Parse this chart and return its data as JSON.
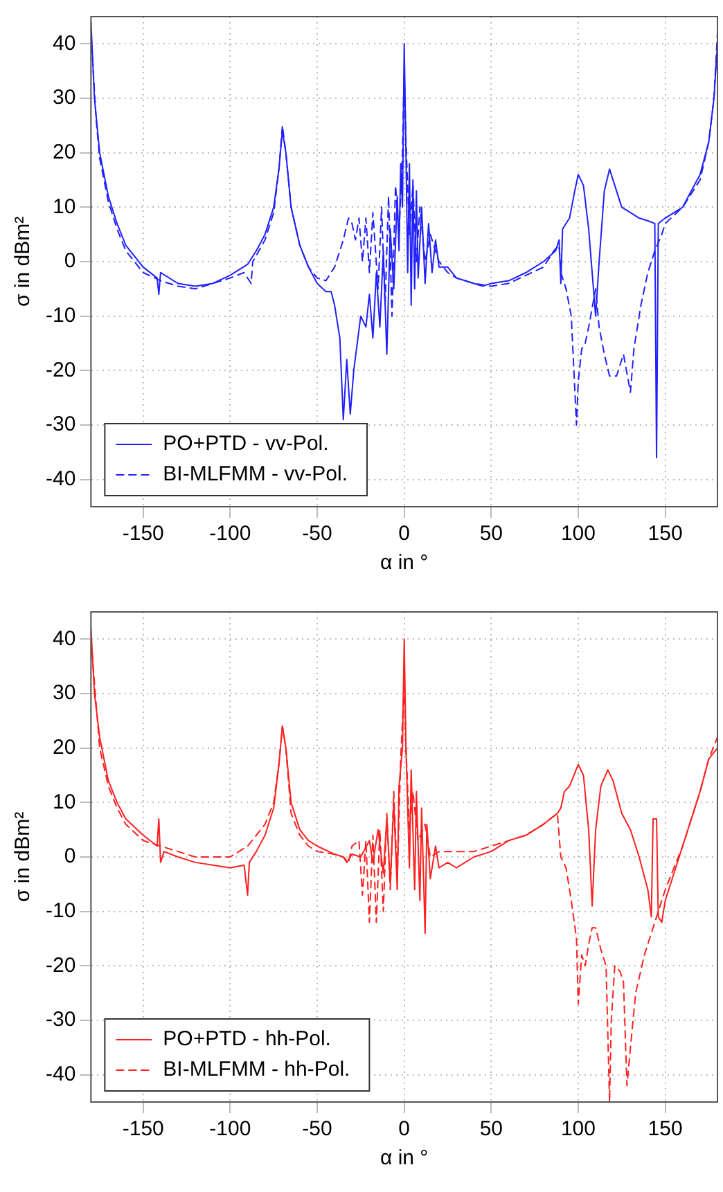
{
  "chart_data": [
    {
      "type": "line",
      "xlabel": "α in °",
      "ylabel": "σ in dBm²",
      "xlim": [
        -180,
        180
      ],
      "xticks": [
        -150,
        -100,
        -50,
        0,
        50,
        100,
        150
      ],
      "ylim": [
        -45,
        45
      ],
      "yticks": [
        -40,
        -30,
        -20,
        -10,
        0,
        10,
        20,
        30,
        40
      ],
      "grid": true,
      "legend": "bottom left",
      "marker": "none",
      "series": [
        {
          "name": "PO+PTD - vv-Pol.",
          "color": "#2020ff",
          "line_style": "solid",
          "x": [
            -180,
            -178,
            -175,
            -170,
            -165,
            -160,
            -150,
            -142,
            -141,
            -140,
            -130,
            -120,
            -110,
            -100,
            -90,
            -85,
            -80,
            -75,
            -72,
            -70,
            -68,
            -65,
            -60,
            -55,
            -50,
            -45,
            -42,
            -40,
            -37,
            -35,
            -33,
            -31,
            -29,
            -27,
            -25,
            -22,
            -20,
            -18,
            -16,
            -14,
            -12,
            -10,
            -8,
            -6,
            -4,
            -3,
            -2,
            -1,
            0,
            1,
            2,
            3,
            4,
            5,
            6,
            7,
            8,
            10,
            12,
            14,
            16,
            18,
            20,
            25,
            30,
            35,
            40,
            45,
            50,
            60,
            70,
            80,
            87,
            89,
            90,
            91,
            95,
            98,
            100,
            103,
            106,
            108,
            110,
            112,
            115,
            118,
            121,
            125,
            130,
            135,
            140,
            144,
            145,
            146,
            150,
            160,
            170,
            175,
            178,
            180
          ],
          "values": [
            44,
            30,
            20,
            12,
            7,
            3,
            -1,
            -3,
            -6,
            -2,
            -4,
            -4.5,
            -4,
            -2.5,
            -0.5,
            2,
            5,
            10,
            17,
            24,
            20,
            10,
            3,
            -1,
            -4,
            -5.5,
            -5.5,
            -8,
            -14,
            -29,
            -18,
            -28,
            -20,
            -15,
            -10,
            -12,
            -6,
            -14,
            -2,
            -12,
            2,
            -17,
            6,
            -5,
            12,
            2,
            18,
            10,
            40,
            20,
            -2,
            18,
            -8,
            15,
            -5,
            13,
            -3,
            10,
            -4,
            7,
            -2,
            4,
            -1,
            -1,
            -3,
            -3.5,
            -4,
            -4.5,
            -4,
            -3.5,
            -2,
            0,
            2,
            4,
            -4,
            6,
            8,
            13,
            16,
            14,
            6,
            -2,
            -10,
            0,
            13,
            17,
            14,
            10,
            9,
            8,
            7.5,
            7,
            -36,
            7,
            8,
            10,
            16,
            22,
            30,
            40
          ]
        },
        {
          "name": "BI-MLFMM - vv-Pol.",
          "color": "#2020ff",
          "line_style": "dashed",
          "x": [
            -180,
            -177,
            -175,
            -170,
            -165,
            -160,
            -150,
            -140,
            -130,
            -120,
            -110,
            -100,
            -92,
            -88,
            -87,
            -80,
            -75,
            -72,
            -70,
            -68,
            -65,
            -60,
            -55,
            -50,
            -45,
            -40,
            -35,
            -32,
            -30,
            -28,
            -26,
            -24,
            -22,
            -20,
            -18,
            -15,
            -13,
            -11,
            -9,
            -7,
            -5,
            -3,
            -1,
            0,
            1,
            3,
            5,
            7,
            9,
            12,
            15,
            20,
            25,
            30,
            40,
            50,
            60,
            70,
            80,
            86,
            89,
            90,
            93,
            96,
            99,
            100,
            102,
            104,
            106,
            110,
            112,
            115,
            118,
            122,
            126,
            130,
            132,
            136,
            140,
            144,
            148,
            150,
            160,
            170,
            175,
            178,
            180
          ],
          "values": [
            42,
            26,
            19,
            11,
            6,
            2,
            -2,
            -3.5,
            -4.5,
            -5,
            -4,
            -3,
            -2,
            -4,
            0,
            4,
            9,
            17,
            25,
            20,
            10,
            3,
            -1,
            -3,
            -3.5,
            -1,
            4,
            8,
            7,
            4,
            8,
            0,
            8,
            -2,
            9,
            -5,
            10,
            -8,
            12,
            -10,
            14,
            5,
            20,
            35,
            22,
            5,
            14,
            0,
            10,
            0,
            5,
            0,
            -2,
            -3,
            -4,
            -4.5,
            -4,
            -2.5,
            -1,
            2,
            3,
            -2,
            -5,
            -10,
            -30,
            -22,
            -16,
            -15,
            -12,
            -5,
            -12,
            -17,
            -21,
            -21,
            -17,
            -24,
            -16,
            -8,
            -2,
            2,
            5,
            7,
            10,
            15,
            22,
            30,
            42
          ]
        }
      ]
    },
    {
      "type": "line",
      "xlabel": "α in °",
      "ylabel": "σ in dBm²",
      "xlim": [
        -180,
        180
      ],
      "xticks": [
        -150,
        -100,
        -50,
        0,
        50,
        100,
        150
      ],
      "ylim": [
        -45,
        45
      ],
      "yticks": [
        -40,
        -30,
        -20,
        -10,
        0,
        10,
        20,
        30,
        40
      ],
      "grid": true,
      "legend": "bottom left",
      "marker": "none",
      "series": [
        {
          "name": "PO+PTD - hh-Pol.",
          "color": "#ff2020",
          "line_style": "solid",
          "x": [
            -180,
            -178,
            -175,
            -170,
            -165,
            -160,
            -150,
            -142,
            -141,
            -140,
            -138,
            -130,
            -120,
            -110,
            -100,
            -92,
            -90,
            -89,
            -85,
            -80,
            -75,
            -72,
            -70,
            -68,
            -65,
            -60,
            -55,
            -50,
            -40,
            -35,
            -33,
            -30,
            -25,
            -20,
            -18,
            -15,
            -12,
            -10,
            -8,
            -6,
            -4,
            -3,
            -1,
            0,
            1,
            3,
            4,
            6,
            7,
            9,
            10,
            12,
            13,
            15,
            18,
            20,
            25,
            30,
            35,
            40,
            50,
            60,
            70,
            80,
            88,
            90,
            92,
            95,
            100,
            103,
            106,
            108,
            110,
            113,
            117,
            120,
            125,
            130,
            135,
            140,
            142,
            143,
            145,
            146,
            148,
            150,
            160,
            170,
            175,
            180
          ],
          "values": [
            42,
            30,
            22,
            14,
            10,
            7,
            4,
            2,
            7,
            -1,
            1,
            0,
            -1,
            -1.5,
            -2,
            -1.5,
            -7,
            -1,
            1,
            4,
            9,
            17,
            24,
            20,
            10,
            5,
            3,
            2,
            0.5,
            0,
            -1,
            0.5,
            0,
            3,
            -1,
            5,
            -3,
            7,
            -5,
            10,
            -6,
            13,
            20,
            40,
            20,
            -2,
            16,
            -6,
            12,
            -8,
            9,
            -14,
            6,
            -4,
            2,
            -2,
            -1,
            -2,
            -1,
            0,
            1,
            3,
            4,
            6,
            8,
            9,
            12,
            13,
            17,
            15,
            5,
            -9,
            5,
            13,
            16,
            14,
            8,
            5,
            0,
            -6,
            -11,
            7,
            7,
            -11,
            -12,
            -8,
            2,
            12,
            18,
            20
          ]
        },
        {
          "name": "BI-MLFMM - hh-Pol.",
          "color": "#ff2020",
          "line_style": "dashed",
          "x": [
            -180,
            -177,
            -175,
            -170,
            -165,
            -160,
            -150,
            -140,
            -130,
            -120,
            -110,
            -100,
            -95,
            -90,
            -85,
            -80,
            -75,
            -72,
            -70,
            -68,
            -65,
            -60,
            -55,
            -50,
            -40,
            -35,
            -32,
            -30,
            -26,
            -24,
            -22,
            -20,
            -18,
            -16,
            -14,
            -12,
            -10,
            -8,
            -6,
            -4,
            -2,
            0,
            1,
            3,
            5,
            8,
            12,
            15,
            20,
            30,
            40,
            50,
            60,
            70,
            80,
            88,
            90,
            93,
            96,
            99,
            100,
            102,
            104,
            106,
            108,
            110,
            113,
            116,
            118,
            119,
            121,
            124,
            126,
            128,
            130,
            133,
            138,
            142,
            146,
            150,
            160,
            170,
            175,
            180
          ],
          "values": [
            40,
            28,
            20,
            13,
            9,
            6,
            3,
            2,
            1,
            0,
            0,
            0,
            1,
            2,
            4,
            6,
            10,
            17,
            24,
            20,
            8,
            4,
            2,
            1,
            0.5,
            0,
            -1,
            2,
            3,
            -7,
            3,
            -12,
            4,
            -12,
            5,
            -10,
            8,
            -6,
            12,
            -4,
            18,
            32,
            20,
            5,
            12,
            3,
            6,
            0,
            1,
            1,
            1,
            2,
            3,
            4,
            6,
            8,
            0,
            -2,
            -8,
            -15,
            -27,
            -18,
            -20,
            -16,
            -13,
            -13,
            -17,
            -20,
            -45,
            -30,
            -20,
            -21,
            -23,
            -42,
            -35,
            -25,
            -18,
            -14,
            -10,
            -6,
            2,
            12,
            18,
            22
          ]
        }
      ]
    }
  ]
}
